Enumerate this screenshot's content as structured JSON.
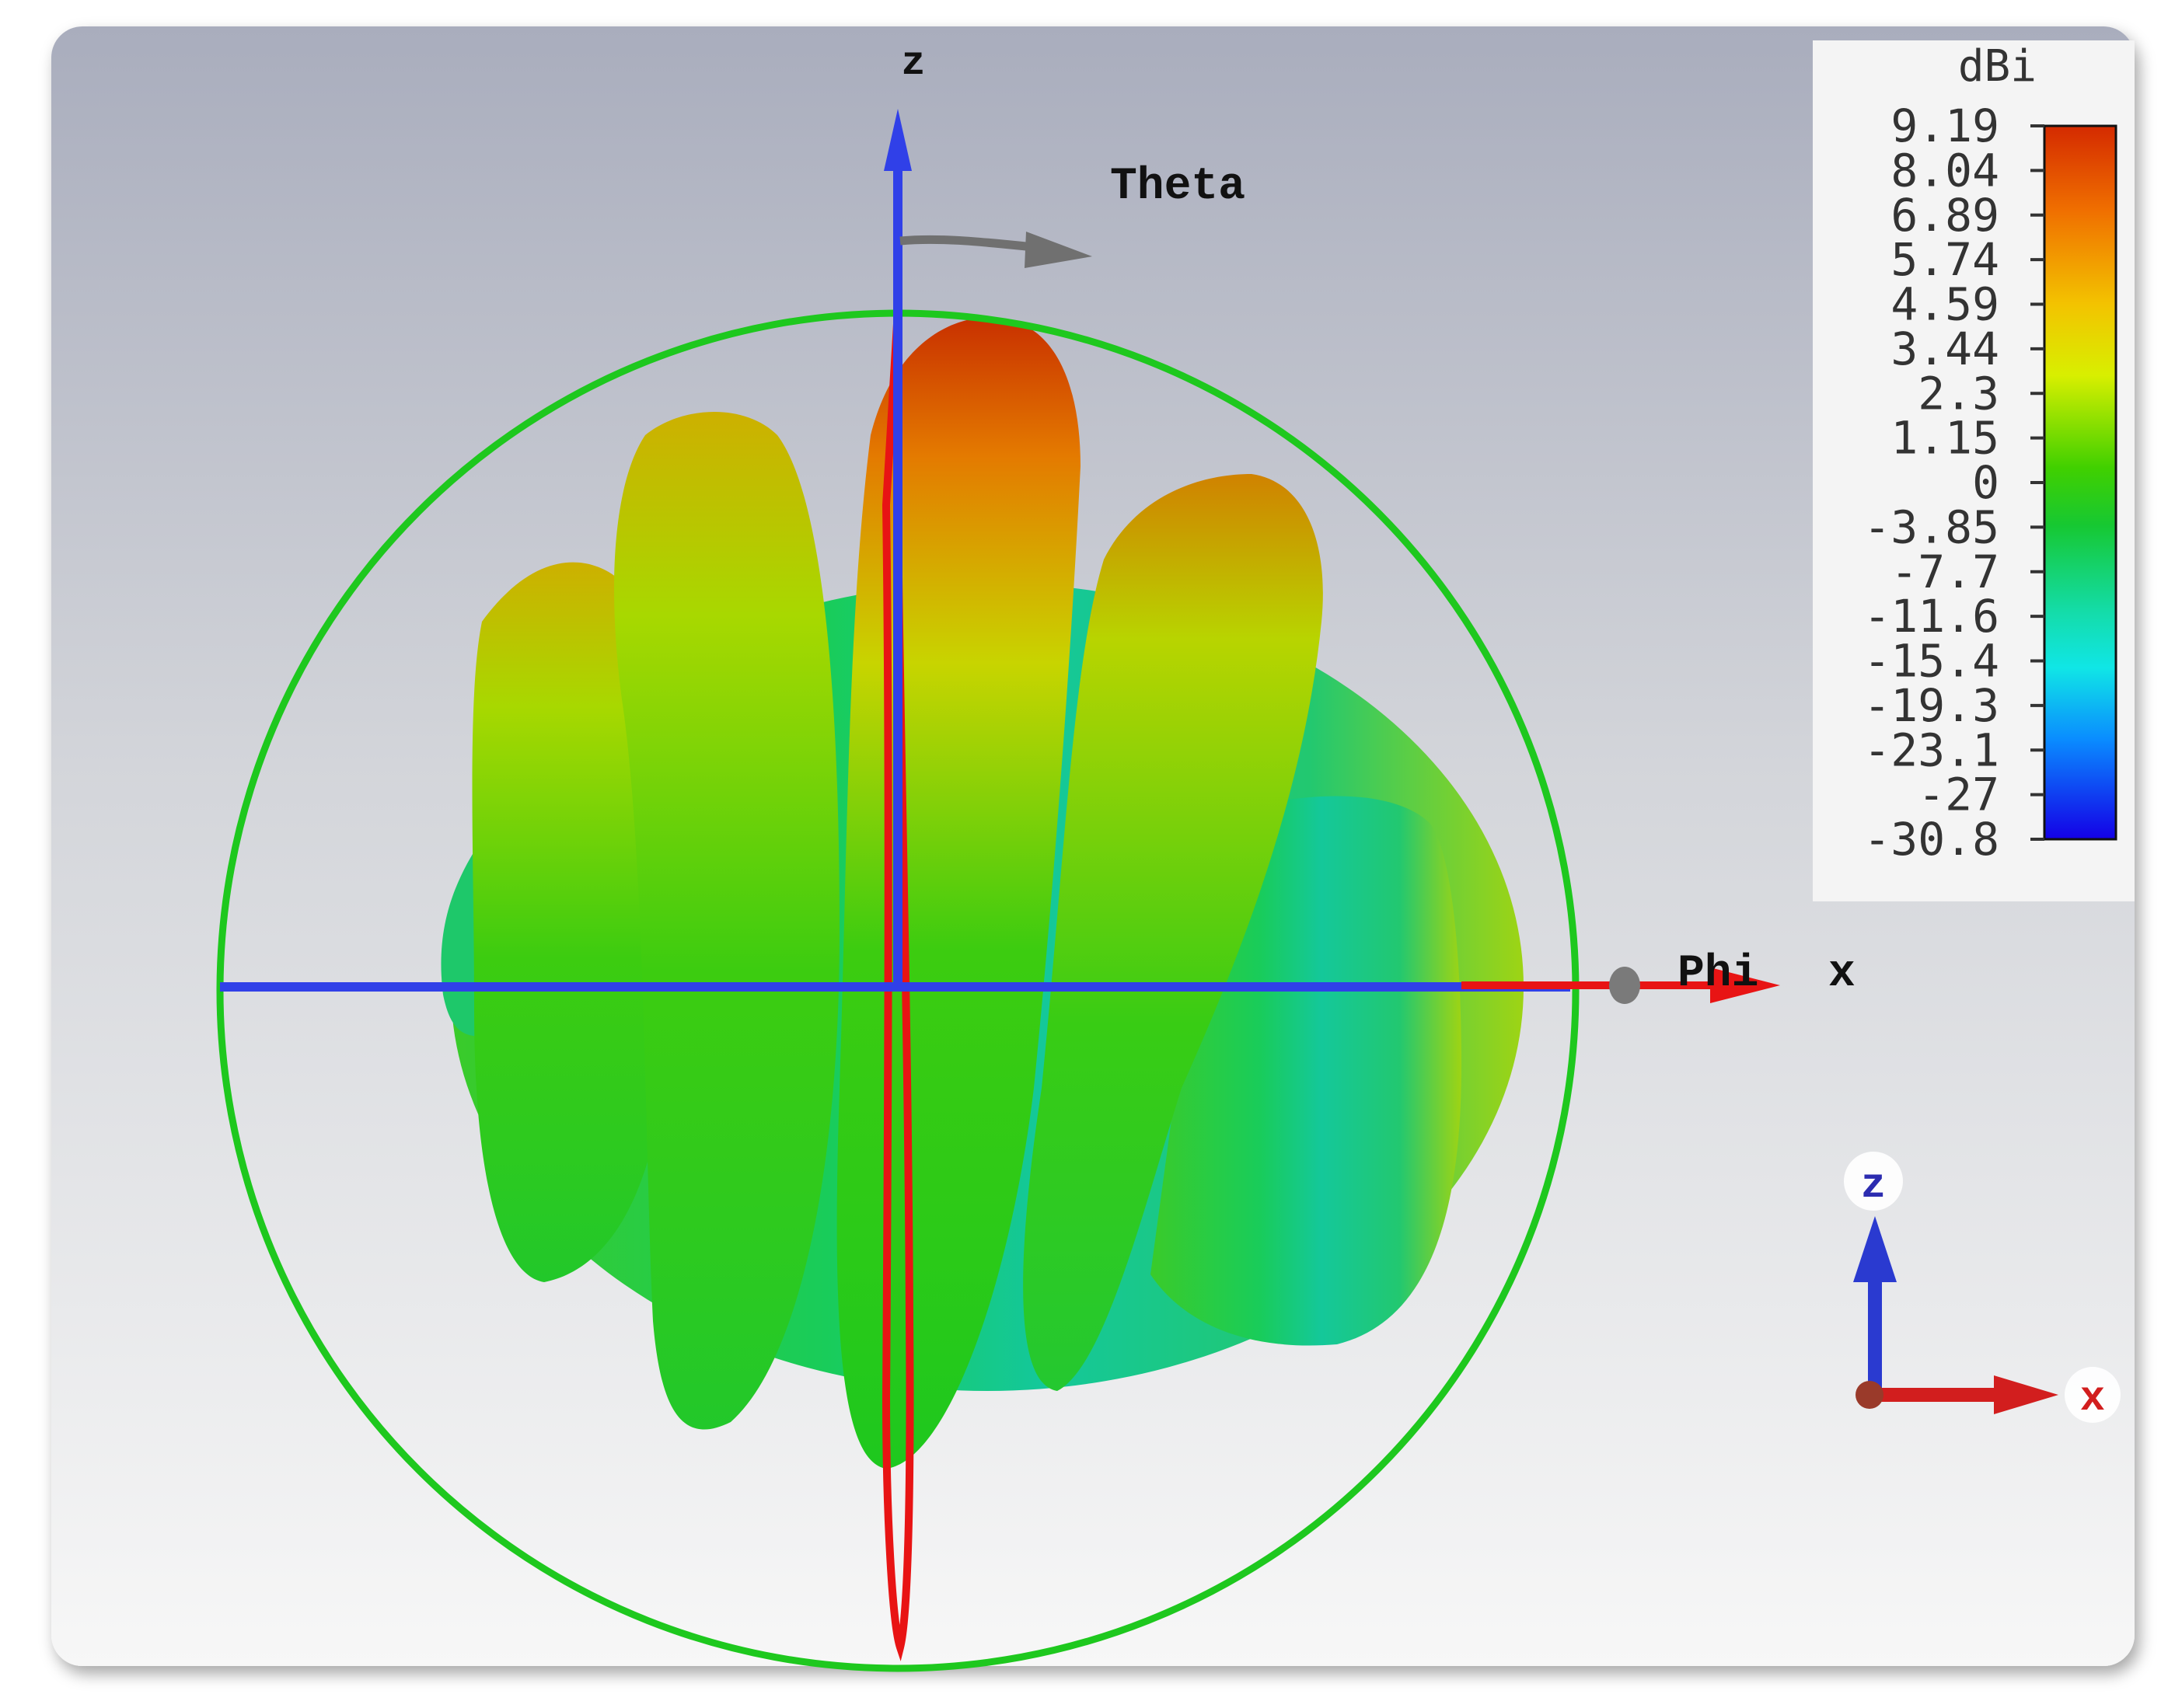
{
  "chart_data": {
    "type": "heatmap",
    "description_kind": "3D far-field directivity pattern",
    "unit_label": "dBi",
    "colorbar": {
      "ticks": [
        "9.19",
        "8.04",
        "6.89",
        "5.74",
        "4.59",
        "3.44",
        "2.3",
        "1.15",
        "0",
        "-3.85",
        "-7.7",
        "-11.6",
        "-15.4",
        "-19.3",
        "-23.1",
        "-27",
        "-30.8"
      ],
      "values": [
        9.19,
        8.04,
        6.89,
        5.74,
        4.59,
        3.44,
        2.3,
        1.15,
        0,
        -3.85,
        -7.7,
        -11.6,
        -15.4,
        -19.3,
        -23.1,
        -27,
        -30.8
      ],
      "range": [
        -30.8,
        9.19
      ],
      "colors": [
        "#d42a00",
        "#e84f00",
        "#f08a00",
        "#f3c300",
        "#e6ef00",
        "#a8e800",
        "#5ed400",
        "#1ec81e",
        "#16c832",
        "#18d270",
        "#14dca8",
        "#10e6d8",
        "#0cd8ff",
        "#0aa0ff",
        "#0a64ff",
        "#0a28ff",
        "#1400e6"
      ]
    },
    "labels": {
      "theta": "Theta",
      "phi": "Phi",
      "x_axis": "x",
      "z_axis": "z",
      "triad_z": "z",
      "triad_x": "x"
    }
  }
}
